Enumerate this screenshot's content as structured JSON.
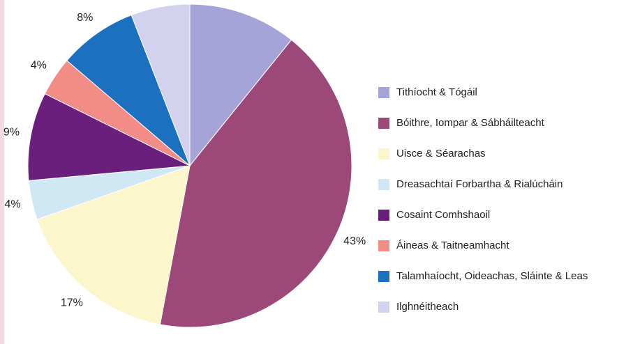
{
  "chart_data": {
    "type": "pie",
    "categories": [
      "Tithíocht & Tógáil",
      "Bóithre, Iompar & Sábháilteacht",
      "Uisce & Séarachas",
      "Dreasachtaí Forbartha & Rialúcháin",
      "Cosaint Comhshaoil",
      "Áineas & Taitneamhacht",
      "Talamhaíocht, Oideachas, Sláinte & Leas",
      "Ilghnéitheach"
    ],
    "values": [
      11,
      43,
      17,
      4,
      9,
      4,
      8,
      6
    ],
    "value_labels": [
      "11%",
      "43%",
      "17%",
      "4%",
      "9%",
      "4%",
      "8%",
      "6%"
    ],
    "colors": [
      "#a4a4d8",
      "#9c4878",
      "#fbf6cc",
      "#cfe8f3",
      "#6b1f7c",
      "#f28c86",
      "#1b70bf",
      "#d2d2ee"
    ],
    "legend": "right"
  }
}
